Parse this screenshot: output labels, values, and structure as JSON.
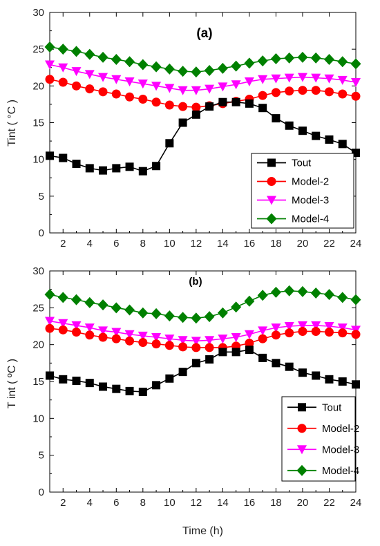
{
  "chart_data": [
    {
      "type": "line",
      "panel_label": "(a)",
      "ylabel": "Tint ( °C  )",
      "xlabel": "",
      "xlim": [
        1,
        24
      ],
      "ylim": [
        0,
        30
      ],
      "yticks": [
        0,
        5,
        10,
        15,
        20,
        25,
        30
      ],
      "xticks": [
        2,
        4,
        6,
        8,
        10,
        12,
        14,
        16,
        18,
        20,
        22,
        24
      ],
      "legend_position": "bottom-right",
      "x": [
        1,
        2,
        3,
        4,
        5,
        6,
        7,
        8,
        9,
        10,
        11,
        12,
        13,
        14,
        15,
        16,
        17,
        18,
        19,
        20,
        21,
        22,
        23,
        24
      ],
      "series": [
        {
          "name": "Tout",
          "color": "#000000",
          "marker": "square",
          "values": [
            10.5,
            10.2,
            9.4,
            8.8,
            8.5,
            8.8,
            9.0,
            8.4,
            9.1,
            12.2,
            15.0,
            16.1,
            17.2,
            17.8,
            17.8,
            17.6,
            17.0,
            15.6,
            14.6,
            13.9,
            13.2,
            12.7,
            12.1,
            10.9
          ]
        },
        {
          "name": "Model-2",
          "color": "#ff0000",
          "marker": "circle",
          "values": [
            20.9,
            20.5,
            20.0,
            19.6,
            19.2,
            18.9,
            18.5,
            18.2,
            17.8,
            17.4,
            17.2,
            17.1,
            17.3,
            17.6,
            17.9,
            18.2,
            18.7,
            19.1,
            19.3,
            19.4,
            19.4,
            19.2,
            18.9,
            18.6
          ]
        },
        {
          "name": "Model-3",
          "color": "#ff00ff",
          "marker": "triangle-down",
          "values": [
            22.9,
            22.5,
            22.0,
            21.6,
            21.2,
            20.9,
            20.6,
            20.3,
            20.0,
            19.7,
            19.4,
            19.4,
            19.6,
            19.9,
            20.2,
            20.6,
            20.9,
            21.0,
            21.1,
            21.2,
            21.1,
            21.0,
            20.8,
            20.5
          ]
        },
        {
          "name": "Model-4",
          "color": "#008000",
          "marker": "diamond",
          "values": [
            25.3,
            25.0,
            24.7,
            24.3,
            23.9,
            23.6,
            23.3,
            22.9,
            22.6,
            22.3,
            22.0,
            21.9,
            22.1,
            22.4,
            22.7,
            23.1,
            23.4,
            23.7,
            23.8,
            23.9,
            23.8,
            23.6,
            23.3,
            23.0
          ]
        }
      ]
    },
    {
      "type": "line",
      "panel_label": "(b)",
      "ylabel": "T int ( ºC  )",
      "xlabel": "Time (h)",
      "xlim": [
        1,
        24
      ],
      "ylim": [
        0,
        30
      ],
      "yticks": [
        0,
        5,
        10,
        15,
        20,
        25,
        30
      ],
      "xticks": [
        2,
        4,
        6,
        8,
        10,
        12,
        14,
        16,
        18,
        20,
        22,
        24
      ],
      "legend_position": "bottom-right",
      "x": [
        1,
        2,
        3,
        4,
        5,
        6,
        7,
        8,
        9,
        10,
        11,
        12,
        13,
        14,
        15,
        16,
        17,
        18,
        19,
        20,
        21,
        22,
        23,
        24
      ],
      "series": [
        {
          "name": "Tout",
          "color": "#000000",
          "marker": "square",
          "values": [
            15.8,
            15.3,
            15.1,
            14.8,
            14.3,
            14.0,
            13.7,
            13.6,
            14.5,
            15.4,
            16.3,
            17.5,
            18.0,
            19.0,
            19.0,
            19.3,
            18.2,
            17.5,
            17.0,
            16.2,
            15.8,
            15.3,
            15.0,
            14.6
          ]
        },
        {
          "name": "Model-2",
          "color": "#ff0000",
          "marker": "circle",
          "values": [
            22.2,
            22.0,
            21.7,
            21.3,
            21.0,
            20.8,
            20.5,
            20.3,
            20.1,
            19.9,
            19.7,
            19.6,
            19.6,
            19.6,
            19.8,
            20.2,
            20.8,
            21.3,
            21.6,
            21.8,
            21.8,
            21.7,
            21.6,
            21.4
          ]
        },
        {
          "name": "Model-3",
          "color": "#ff00ff",
          "marker": "triangle-down",
          "values": [
            23.2,
            22.9,
            22.6,
            22.3,
            21.9,
            21.7,
            21.4,
            21.2,
            21.0,
            20.8,
            20.6,
            20.5,
            20.6,
            20.8,
            21.0,
            21.4,
            21.9,
            22.3,
            22.5,
            22.6,
            22.6,
            22.5,
            22.3,
            22.0
          ]
        },
        {
          "name": "Model-4",
          "color": "#008000",
          "marker": "diamond",
          "values": [
            26.8,
            26.4,
            26.1,
            25.7,
            25.4,
            25.0,
            24.7,
            24.3,
            24.2,
            23.9,
            23.7,
            23.6,
            23.8,
            24.3,
            25.1,
            25.9,
            26.7,
            27.1,
            27.3,
            27.2,
            27.0,
            26.8,
            26.4,
            26.1
          ]
        }
      ]
    }
  ]
}
